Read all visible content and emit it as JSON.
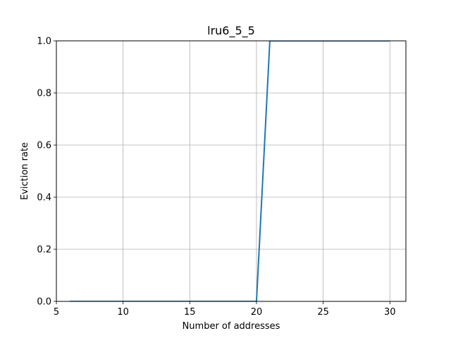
{
  "chart_data": {
    "type": "line",
    "title": "lru6_5_5",
    "xlabel": "Number of addresses",
    "ylabel": "Eviction rate",
    "xlim": [
      5,
      31.2
    ],
    "ylim": [
      0,
      1.0
    ],
    "xticks": [
      5,
      10,
      15,
      20,
      25,
      30
    ],
    "yticks": [
      0.0,
      0.2,
      0.4,
      0.6,
      0.8,
      1.0
    ],
    "xtick_labels": [
      "5",
      "10",
      "15",
      "20",
      "25",
      "30"
    ],
    "ytick_labels": [
      "0.0",
      "0.2",
      "0.4",
      "0.6",
      "0.8",
      "1.0"
    ],
    "grid": true,
    "series": [
      {
        "color": "#1f77b4",
        "x": [
          6,
          7,
          8,
          9,
          10,
          11,
          12,
          13,
          14,
          15,
          16,
          17,
          18,
          19,
          20,
          21,
          22,
          23,
          24,
          25,
          26,
          27,
          28,
          29,
          30
        ],
        "y": [
          0,
          0,
          0,
          0,
          0,
          0,
          0,
          0,
          0,
          0,
          0,
          0,
          0,
          0,
          0,
          1,
          1,
          1,
          1,
          1,
          1,
          1,
          1,
          1,
          1
        ]
      }
    ]
  }
}
